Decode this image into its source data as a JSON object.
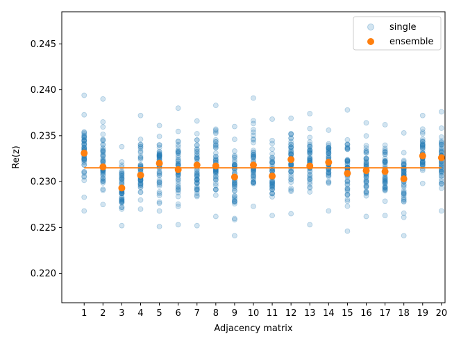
{
  "chart_data": {
    "type": "scatter",
    "title": "",
    "xlabel": "Adjacency matrix",
    "ylabel": "Re(z)",
    "xlim": [
      -0.19,
      20.19
    ],
    "ylim": [
      0.2168,
      0.2485
    ],
    "xticks": [
      1,
      2,
      3,
      4,
      5,
      6,
      7,
      8,
      9,
      10,
      11,
      12,
      13,
      14,
      15,
      16,
      17,
      18,
      19,
      20
    ],
    "xtick_labels": [
      "1",
      "2",
      "3",
      "4",
      "5",
      "6",
      "7",
      "8",
      "9",
      "10",
      "11",
      "12",
      "13",
      "14",
      "15",
      "16",
      "17",
      "18",
      "19",
      "20"
    ],
    "yticks": [
      0.22,
      0.225,
      0.23,
      0.235,
      0.24,
      0.245
    ],
    "ytick_labels": [
      "0.220",
      "0.225",
      "0.230",
      "0.235",
      "0.240",
      "0.245"
    ],
    "grid": false,
    "legend": {
      "position": "top-right",
      "entries": [
        "single",
        "ensemble"
      ]
    },
    "colors": {
      "single": "#1f77b4",
      "ensemble": "#ff7f0e",
      "mean_line": "#ff7f0e"
    },
    "mean_line": {
      "y": 0.2315,
      "x_range": [
        1,
        20
      ]
    },
    "series": [
      {
        "name": "single",
        "description": "scatter of individual samples per adjacency matrix (min, max shown; dense cloud between)",
        "x": [
          1,
          2,
          3,
          4,
          5,
          6,
          7,
          8,
          9,
          10,
          11,
          12,
          13,
          14,
          15,
          16,
          17,
          18,
          19,
          20
        ],
        "min": [
          0.2268,
          0.2275,
          0.2252,
          0.227,
          0.2251,
          0.2253,
          0.2252,
          0.2262,
          0.2241,
          0.2273,
          0.2263,
          0.2265,
          0.2253,
          0.2268,
          0.2246,
          0.2262,
          0.2263,
          0.2241,
          0.2298,
          0.2268
        ],
        "max": [
          0.2394,
          0.239,
          0.2338,
          0.2372,
          0.2361,
          0.238,
          0.2366,
          0.2383,
          0.236,
          0.2391,
          0.2368,
          0.2369,
          0.2374,
          0.2356,
          0.2378,
          0.2364,
          0.2362,
          0.2353,
          0.2372,
          0.2376
        ]
      },
      {
        "name": "ensemble",
        "x": [
          1,
          2,
          3,
          4,
          5,
          6,
          7,
          8,
          9,
          10,
          11,
          12,
          13,
          14,
          15,
          16,
          17,
          18,
          19,
          20
        ],
        "values": [
          0.2331,
          0.2316,
          0.2293,
          0.2307,
          0.232,
          0.2313,
          0.2318,
          0.2317,
          0.2305,
          0.2318,
          0.2306,
          0.2324,
          0.2317,
          0.2321,
          0.2309,
          0.2312,
          0.2311,
          0.2303,
          0.2328,
          0.2326
        ]
      }
    ]
  }
}
